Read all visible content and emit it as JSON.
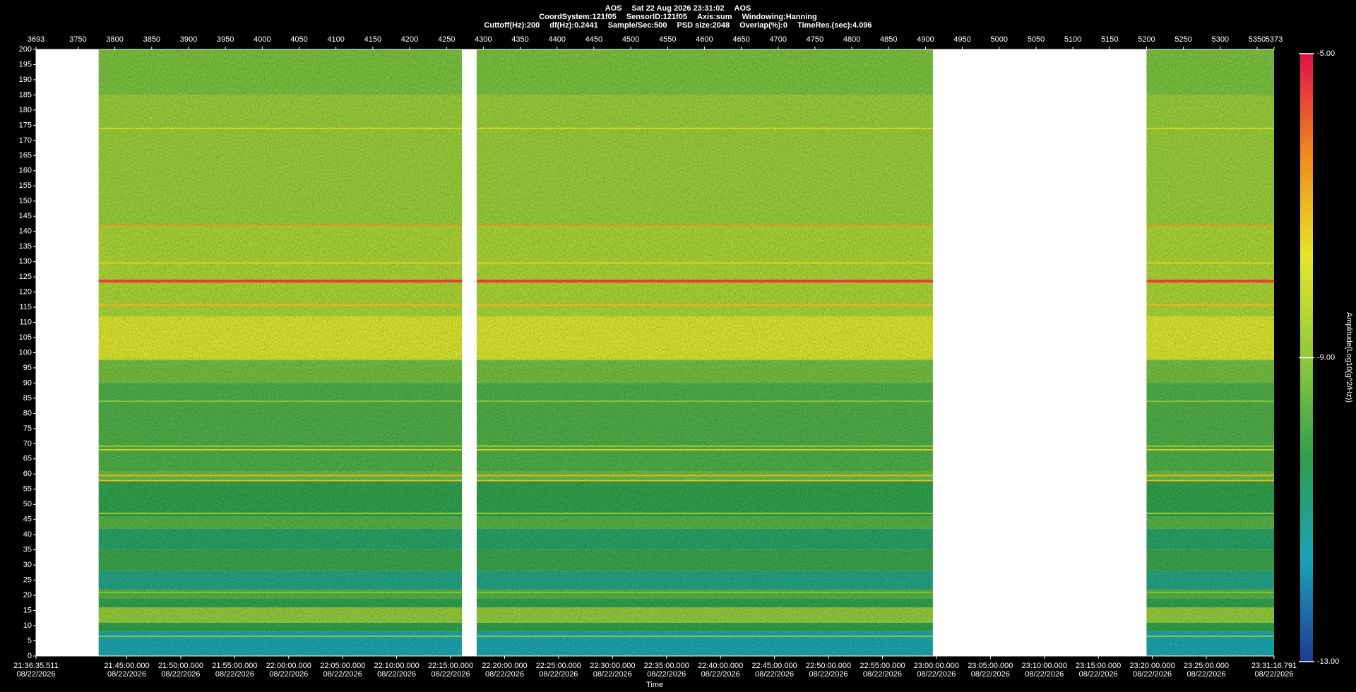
{
  "chart_data": {
    "type": "spectrogram",
    "header": [
      [
        "AOS",
        "Sat 22 Aug 2026 23:31:02",
        "AOS"
      ],
      [
        "CoordSystem:121f05",
        "SensorID:121f05",
        "Axis:sum",
        "Windowing:Hanning"
      ],
      [
        "Cuttoff(Hz):200",
        "df(Hz):0.2441",
        "Sample/Sec:500",
        "PSD size:2048",
        "Overlap(%):0",
        "TimeRes.(sec):4.096"
      ]
    ],
    "xlim": [
      3693,
      5373
    ],
    "xticks": [
      3693,
      3750,
      3800,
      3850,
      3900,
      3950,
      4000,
      4050,
      4100,
      4150,
      4200,
      4250,
      4300,
      4350,
      4400,
      4450,
      4500,
      4550,
      4600,
      4650,
      4700,
      4750,
      4800,
      4850,
      4900,
      4950,
      5000,
      5050,
      5100,
      5150,
      5200,
      5250,
      5300,
      5350,
      5373
    ],
    "x2lim": [
      77795.511,
      84676.791
    ],
    "x2ticks": [
      {
        "value": 77795.511,
        "label": "21:36:35.511"
      },
      {
        "value": 78300,
        "label": "21:45:00.000"
      },
      {
        "value": 78600,
        "label": "21:50:00.000"
      },
      {
        "value": 78900,
        "label": "21:55:00.000"
      },
      {
        "value": 79200,
        "label": "22:00:00.000"
      },
      {
        "value": 79500,
        "label": "22:05:00.000"
      },
      {
        "value": 79800,
        "label": "22:10:00.000"
      },
      {
        "value": 80100,
        "label": "22:15:00.000"
      },
      {
        "value": 80400,
        "label": "22:20:00.000"
      },
      {
        "value": 80700,
        "label": "22:25:00.000"
      },
      {
        "value": 81000,
        "label": "22:30:00.000"
      },
      {
        "value": 81300,
        "label": "22:35:00.000"
      },
      {
        "value": 81600,
        "label": "22:40:00.000"
      },
      {
        "value": 81900,
        "label": "22:45:00.000"
      },
      {
        "value": 82200,
        "label": "22:50:00.000"
      },
      {
        "value": 82500,
        "label": "22:55:00.000"
      },
      {
        "value": 82800,
        "label": "23:00:00.000"
      },
      {
        "value": 83100,
        "label": "23:05:00.000"
      },
      {
        "value": 83400,
        "label": "23:10:00.000"
      },
      {
        "value": 83700,
        "label": "23:15:00.000"
      },
      {
        "value": 84000,
        "label": "23:20:00.000"
      },
      {
        "value": 84300,
        "label": "23:25:00.000"
      },
      {
        "value": 84676.791,
        "label": "23:31:16.791"
      }
    ],
    "x2_date": "08/22/2026",
    "xlabel": "Time",
    "ylim": [
      0,
      200
    ],
    "yticks": [
      0,
      5,
      10,
      15,
      20,
      25,
      30,
      35,
      40,
      45,
      50,
      55,
      60,
      65,
      70,
      75,
      80,
      85,
      90,
      95,
      100,
      105,
      110,
      115,
      120,
      125,
      130,
      135,
      140,
      145,
      150,
      155,
      160,
      165,
      170,
      175,
      180,
      185,
      190,
      195,
      200
    ],
    "segments": [
      [
        3778,
        4271
      ],
      [
        4291,
        4910
      ],
      [
        5200,
        5373
      ]
    ],
    "bands": [
      {
        "from": 0,
        "to": 8,
        "level": -11.5
      },
      {
        "from": 8,
        "to": 11,
        "level": -10.3
      },
      {
        "from": 11,
        "to": 16,
        "level": -9
      },
      {
        "from": 16,
        "to": 19,
        "level": -10.3
      },
      {
        "from": 19,
        "to": 22,
        "level": -9.8
      },
      {
        "from": 22,
        "to": 28,
        "level": -11
      },
      {
        "from": 28,
        "to": 35,
        "level": -10.2
      },
      {
        "from": 35,
        "to": 42,
        "level": -10.6
      },
      {
        "from": 42,
        "to": 46,
        "level": -9.8
      },
      {
        "from": 46,
        "to": 58,
        "level": -10.3
      },
      {
        "from": 58,
        "to": 61,
        "level": -9.5
      },
      {
        "from": 61,
        "to": 90,
        "level": -9.9
      },
      {
        "from": 90,
        "to": 98,
        "level": -9.4
      },
      {
        "from": 98,
        "to": 112,
        "level": -7.9
      },
      {
        "from": 112,
        "to": 142,
        "level": -8.6
      },
      {
        "from": 142,
        "to": 185,
        "level": -8.9
      },
      {
        "from": 185,
        "to": 200,
        "level": -9.3
      }
    ],
    "lines": [
      {
        "freq": 6.5,
        "level": -8.8
      },
      {
        "freq": 21,
        "level": -9
      },
      {
        "freq": 47,
        "level": -8.5
      },
      {
        "freq": 57.8,
        "level": -7
      },
      {
        "freq": 59.5,
        "level": -7
      },
      {
        "freq": 68,
        "level": -7.5
      },
      {
        "freq": 69.2,
        "level": -8.5
      },
      {
        "freq": 84,
        "level": -9
      },
      {
        "freq": 97.7,
        "level": -8.5
      },
      {
        "freq": 115.7,
        "level": -7
      },
      {
        "freq": 123.6,
        "level": -5.5
      },
      {
        "freq": 129.6,
        "level": -7.5
      },
      {
        "freq": 141.9,
        "level": -6.5
      },
      {
        "freq": 174,
        "level": -7.5
      }
    ],
    "clim": [
      -13,
      -5
    ],
    "cticks": [
      {
        "value": -5,
        "label": "-5.00"
      },
      {
        "value": -9,
        "label": "-9.00"
      },
      {
        "value": -13,
        "label": "-13.00"
      }
    ],
    "clabel": "Amplitude(Log10(g^2/Hz))",
    "colormap": [
      "#1f3a93",
      "#1aa3b8",
      "#2e9e4c",
      "#8fc93a",
      "#e6e62a",
      "#f08a1c",
      "#e0104a"
    ]
  }
}
